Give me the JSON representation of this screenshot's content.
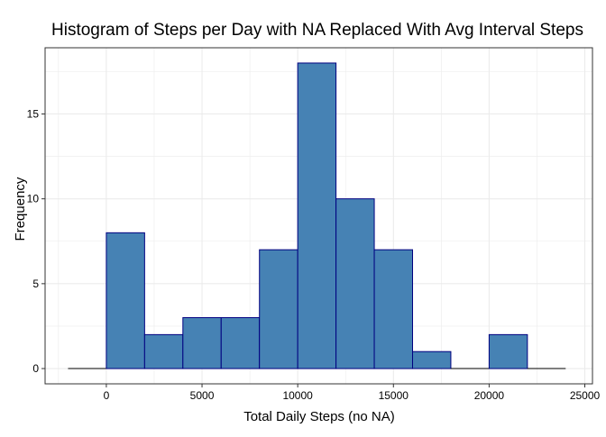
{
  "chart_data": {
    "type": "bar",
    "title": "Histogram of Steps per Day with NA Replaced With Avg Interval Steps",
    "xlabel": "Total Daily Steps (no NA)",
    "ylabel": "Frequency",
    "bin_width": 2000,
    "bins": [
      {
        "start": -2000,
        "end": 0,
        "count": 0
      },
      {
        "start": 0,
        "end": 2000,
        "count": 8
      },
      {
        "start": 2000,
        "end": 4000,
        "count": 2
      },
      {
        "start": 4000,
        "end": 6000,
        "count": 3
      },
      {
        "start": 6000,
        "end": 8000,
        "count": 3
      },
      {
        "start": 8000,
        "end": 10000,
        "count": 7
      },
      {
        "start": 10000,
        "end": 12000,
        "count": 18
      },
      {
        "start": 12000,
        "end": 14000,
        "count": 10
      },
      {
        "start": 14000,
        "end": 16000,
        "count": 7
      },
      {
        "start": 16000,
        "end": 18000,
        "count": 1
      },
      {
        "start": 18000,
        "end": 20000,
        "count": 0
      },
      {
        "start": 20000,
        "end": 22000,
        "count": 2
      },
      {
        "start": 22000,
        "end": 24000,
        "count": 0
      }
    ],
    "xlim": [
      -3200,
      25400
    ],
    "ylim": [
      -0.9,
      18.9
    ],
    "x_ticks": [
      0,
      5000,
      10000,
      15000,
      20000,
      25000
    ],
    "x_tick_labels": [
      "0",
      "5000",
      "10000",
      "15000",
      "20000",
      "25000"
    ],
    "y_ticks": [
      0,
      5,
      10,
      15
    ],
    "y_tick_labels": [
      "0",
      "5",
      "10",
      "15"
    ],
    "grid": true,
    "legend": "none",
    "colors": {
      "bar_fill": "#4682b4",
      "bar_outline": "#000080",
      "grid": "#ebebeb",
      "panel_border": "#333333",
      "zero_line": "#000000"
    }
  }
}
